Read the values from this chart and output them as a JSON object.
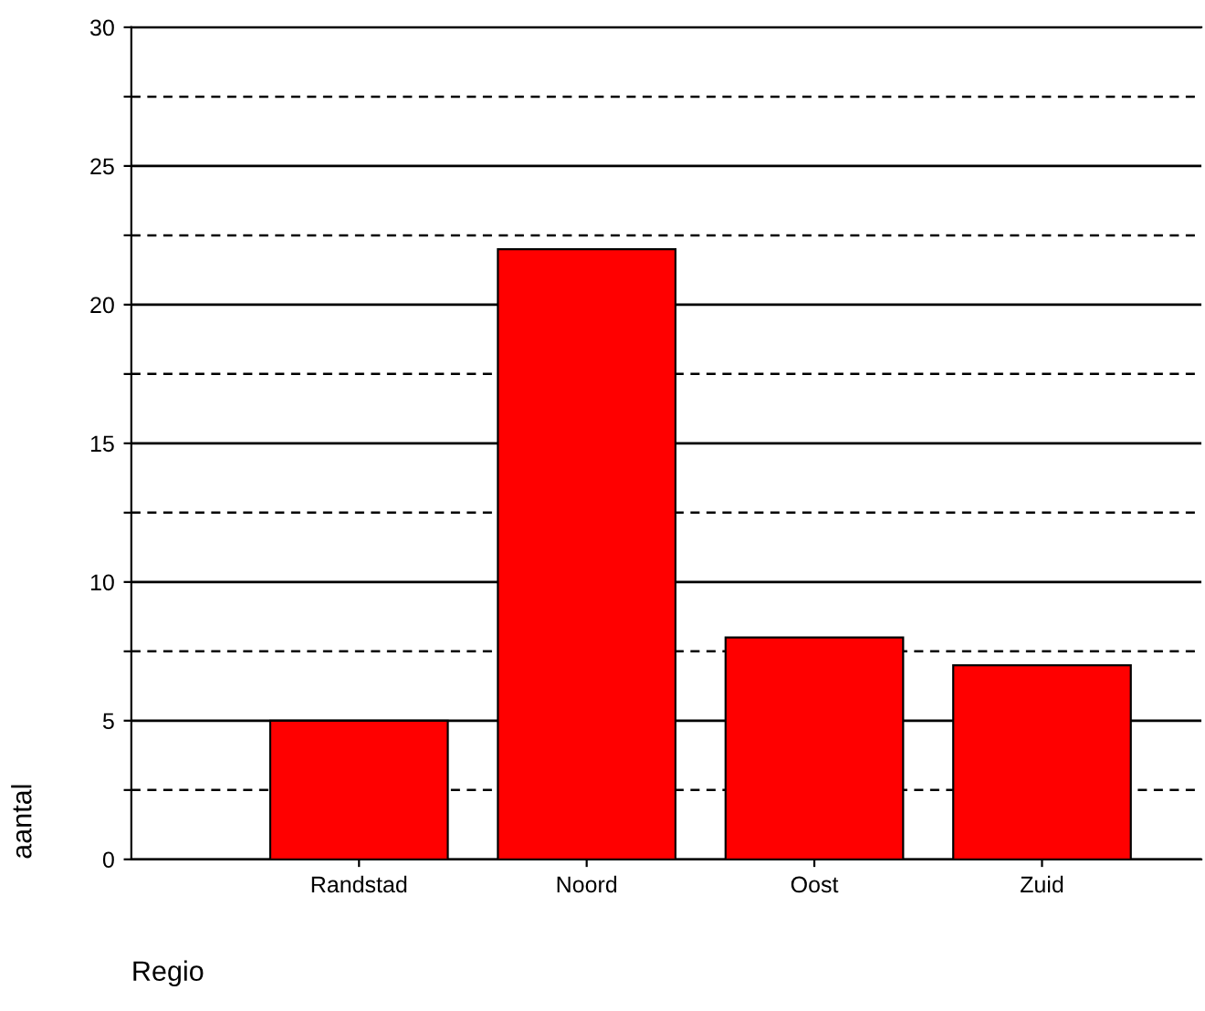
{
  "chart_data": {
    "type": "bar",
    "xlabel": "Regio",
    "ylabel": "aantal",
    "categories": [
      "Randstad",
      "Noord",
      "Oost",
      "Zuid"
    ],
    "values": [
      5,
      22,
      8,
      7
    ],
    "color": "#ff0000",
    "ylim": [
      0,
      30
    ],
    "yticks": [
      0,
      {
        "value": 2.5,
        "label": null
      },
      5,
      {
        "value": 7.5,
        "label": null
      },
      10,
      {
        "value": 12.5,
        "label": null
      },
      15,
      {
        "value": 17.5,
        "label": null
      },
      20,
      {
        "value": 22.5,
        "label": null
      },
      25,
      {
        "value": 27.5,
        "label": null
      },
      30
    ],
    "grid": "y"
  }
}
